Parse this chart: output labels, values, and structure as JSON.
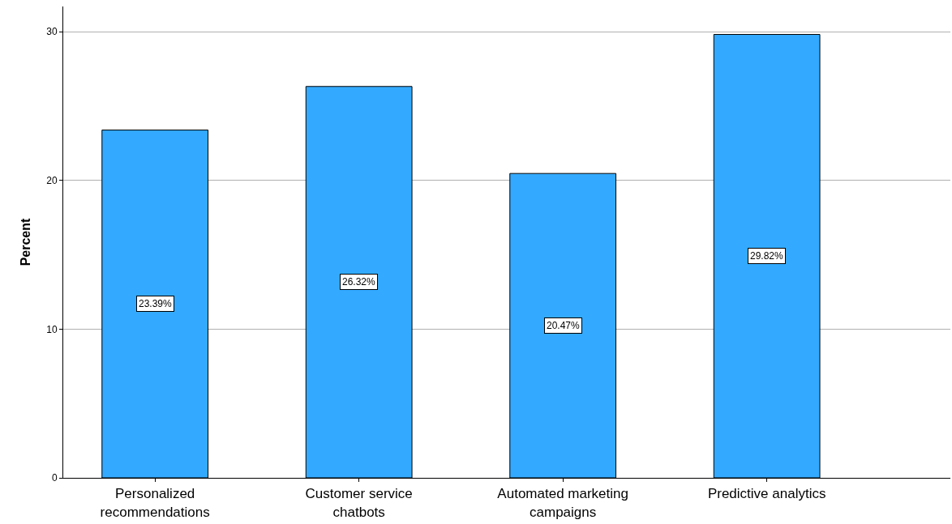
{
  "chart_data": {
    "type": "bar",
    "ylabel": "Percent",
    "categories": [
      "Personalized recommendations",
      "Customer service chatbots",
      "Automated marketing campaigns",
      "Predictive analytics"
    ],
    "values": [
      23.39,
      26.32,
      20.47,
      29.82
    ],
    "value_labels": [
      "23.39%",
      "26.32%",
      "20.47%",
      "29.82%"
    ],
    "color": "#33aaff",
    "ylim": [
      0,
      31.7
    ],
    "yticks": [
      0,
      10,
      20,
      30
    ],
    "grid": "y"
  }
}
